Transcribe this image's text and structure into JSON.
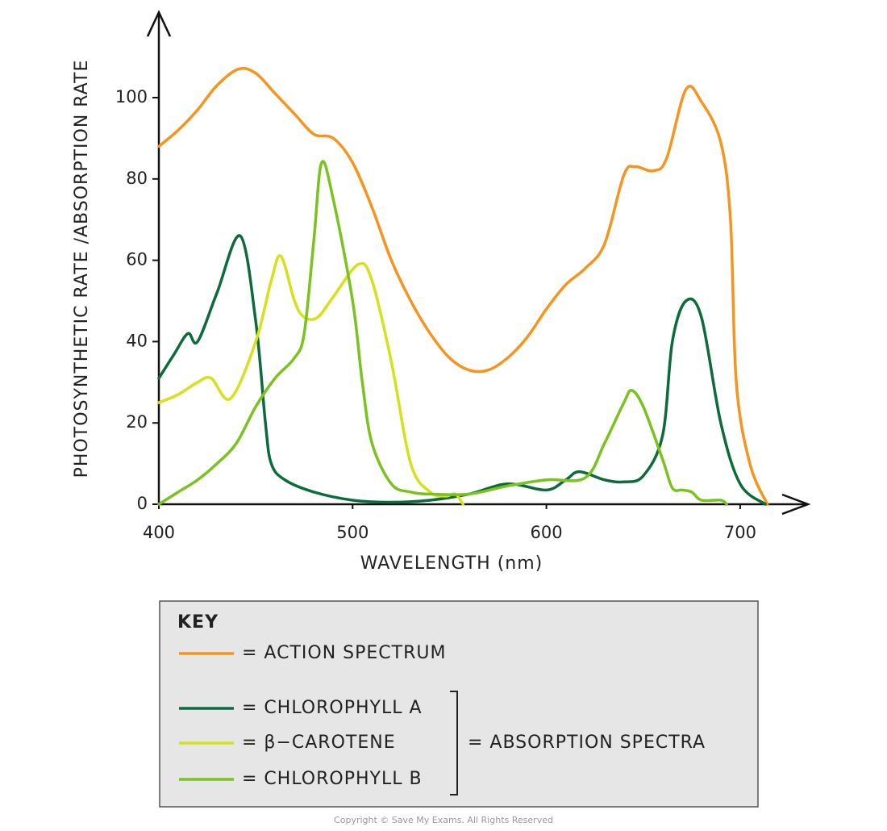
{
  "chart_data": {
    "type": "line",
    "x_label": "WAVELENGTH (nm)",
    "y_label": "PHOTOSYNTHETIC RATE /ABSORPTION RATE",
    "xlim": [
      400,
      735
    ],
    "ylim": [
      0,
      121
    ],
    "xticks": [
      400,
      500,
      600,
      700
    ],
    "yticks": [
      0,
      20,
      40,
      60,
      80,
      100
    ],
    "grid": false,
    "legend_title": "KEY",
    "legend_group_label": "= ABSORPTION SPECTRA",
    "series": [
      {
        "name": "= ACTION SPECTRUM",
        "color": "#f7941d",
        "x": [
          400,
          410,
          420,
          430,
          441,
          450,
          460,
          470,
          480,
          490,
          500,
          510,
          520,
          530,
          540,
          550,
          560,
          570,
          580,
          590,
          600,
          610,
          620,
          630,
          640,
          646,
          655,
          662,
          672,
          680,
          690,
          695,
          698,
          705,
          714
        ],
        "values": [
          88,
          92,
          97,
          103,
          107,
          106,
          101,
          96,
          91,
          90,
          84,
          73,
          60,
          50,
          42,
          36,
          33,
          33,
          36,
          41,
          48,
          54,
          58,
          64,
          81,
          83,
          82,
          85,
          102,
          99,
          89,
          70,
          30,
          10,
          0
        ]
      },
      {
        "name": "= CHLOROPHYLL A",
        "color": "#0c6b3a",
        "x": [
          400,
          408,
          415,
          420,
          430,
          442,
          450,
          455,
          458,
          465,
          480,
          500,
          520,
          540,
          560,
          580,
          600,
          610,
          617,
          630,
          640,
          650,
          660,
          665,
          672,
          680,
          690,
          700,
          713
        ],
        "values": [
          31,
          37,
          42,
          40,
          52,
          66,
          45,
          20,
          10,
          6,
          3,
          1,
          0.5,
          1,
          2.5,
          5,
          3.5,
          6,
          8,
          6,
          5.5,
          7,
          17,
          40,
          50,
          46,
          20,
          5,
          0
        ]
      },
      {
        "name": "= β−CAROTENE",
        "color": "#d4e21a",
        "x": [
          400,
          410,
          420,
          427,
          437,
          450,
          458,
          463,
          470,
          475,
          482,
          490,
          503,
          510,
          520,
          530,
          540,
          548,
          553,
          557
        ],
        "values": [
          25,
          27,
          30,
          31,
          26,
          40,
          55,
          61,
          50,
          46,
          46,
          51,
          59,
          55,
          35,
          10,
          3,
          2,
          2.5,
          0
        ]
      },
      {
        "name": "= CHLOROPHYLL B",
        "color": "#7ac21e",
        "x": [
          400,
          410,
          420,
          430,
          440,
          450,
          460,
          470,
          475,
          480,
          484,
          490,
          500,
          505,
          510,
          520,
          530,
          540,
          560,
          580,
          600,
          620,
          630,
          640,
          644,
          650,
          660,
          665,
          670,
          675,
          680,
          690,
          693
        ],
        "values": [
          0,
          3,
          6,
          10,
          15,
          24,
          31,
          36,
          42,
          65,
          84,
          75,
          50,
          30,
          15,
          5,
          3,
          2.5,
          2.5,
          4.5,
          6,
          6.5,
          15,
          25,
          28,
          24,
          11,
          4,
          3.5,
          3,
          1,
          1,
          0
        ]
      }
    ],
    "copyright": "Copyright © Save My Exams. All Rights Reserved"
  }
}
